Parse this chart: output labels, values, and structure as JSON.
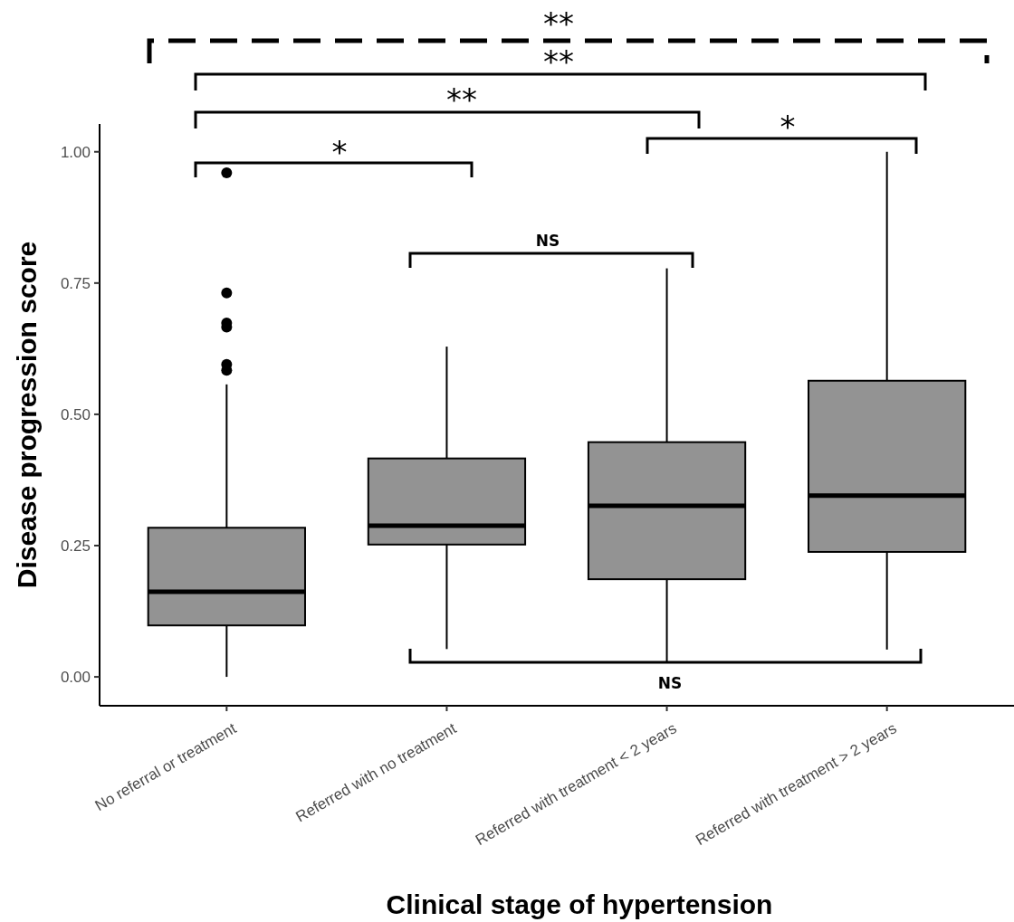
{
  "chart_data": {
    "type": "box",
    "xlabel": "Clinical stage of hypertension",
    "ylabel": "Disease progression score",
    "categories": [
      "No referral or treatment",
      "Referred with no treatment",
      "Referred with treatment < 2 years",
      "Referred with treatment > 2 years"
    ],
    "boxes": [
      {
        "low": 0,
        "q1": 0.098,
        "median": 0.162,
        "q3": 0.284,
        "high": 0.557,
        "outliers": [
          0.96,
          0.731,
          0.674,
          0.666,
          0.595,
          0.584
        ]
      },
      {
        "low": 0.053,
        "q1": 0.252,
        "median": 0.288,
        "q3": 0.416,
        "high": 0.629
      },
      {
        "low": 0.026,
        "q1": 0.186,
        "median": 0.326,
        "q3": 0.447,
        "high": 0.778
      },
      {
        "low": 0.052,
        "q1": 0.238,
        "median": 0.345,
        "q3": 0.564,
        "high": 1.0
      }
    ],
    "color": "#939393",
    "ylim": [
      -0.055,
      1.053
    ],
    "yticks": [
      {
        "value": 0,
        "label": "0.00"
      },
      {
        "value": 0.25,
        "label": "0.25"
      },
      {
        "value": 0.5,
        "label": "0.50"
      },
      {
        "value": 0.75,
        "label": "0.75"
      },
      {
        "value": 1,
        "label": "1.00"
      }
    ],
    "grid": false,
    "annotations": [
      "**",
      "**",
      "**",
      "*",
      "*",
      "NS",
      "NS"
    ]
  }
}
